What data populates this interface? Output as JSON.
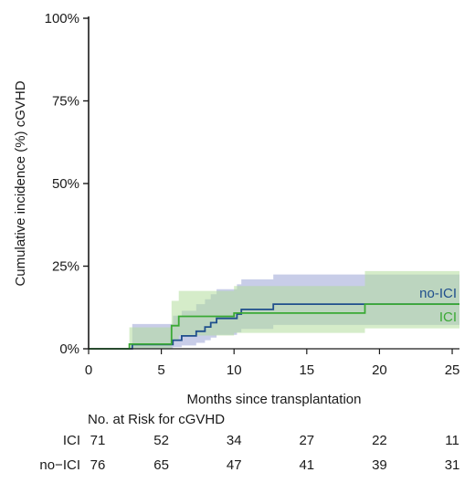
{
  "chart_data": {
    "type": "line",
    "subtype": "cumulative incidence step curves with confidence bands",
    "xlabel": "Months since transplantation",
    "ylabel": "Cumulative incidence (%) cGVHD",
    "xlim": [
      0,
      25.5
    ],
    "ylim": [
      0,
      100
    ],
    "x_ticks": [
      "0",
      "5",
      "10",
      "15",
      "20",
      "25"
    ],
    "y_ticks": [
      "0%",
      "25%",
      "50%",
      "75%",
      "100%"
    ],
    "grid": false,
    "legend": "inline labels at right end of curves",
    "series": [
      {
        "name": "no-ICI",
        "color": "#1f4e8c",
        "band_color": "#9aa4d6",
        "x": [
          0,
          3,
          5.8,
          6.4,
          7.4,
          8.0,
          8.4,
          8.8,
          9.1,
          10.2,
          10.5,
          11.0,
          12.7,
          25.5
        ],
        "y": [
          0,
          1.3,
          2.6,
          3.9,
          5.3,
          6.6,
          7.9,
          9.2,
          9.2,
          10.5,
          11.9,
          11.9,
          13.5,
          13.5
        ],
        "lower": [
          0,
          0,
          0.5,
          1.0,
          1.8,
          2.6,
          3.4,
          4.2,
          4.2,
          5.0,
          6.0,
          6.0,
          7.2,
          7.2
        ],
        "upper": [
          0,
          7.5,
          10.0,
          11.5,
          13.5,
          15.0,
          16.5,
          18.0,
          18.0,
          19.5,
          21.0,
          21.0,
          22.5,
          22.5
        ]
      },
      {
        "name": "ICI",
        "color": "#3aa935",
        "band_color": "#b2dc9c",
        "x": [
          0,
          2.8,
          5.7,
          6.2,
          8.6,
          10.0,
          19.0,
          25.5
        ],
        "y": [
          0,
          1.4,
          7.0,
          9.8,
          9.8,
          10.8,
          13.5,
          13.5
        ],
        "lower": [
          0,
          0,
          2.5,
          4.0,
          4.0,
          4.8,
          6.2,
          6.2
        ],
        "upper": [
          0,
          6.5,
          14.5,
          17.5,
          17.5,
          19.0,
          23.5,
          23.5
        ]
      }
    ]
  },
  "risk_table": {
    "title": "No. at Risk for cGVHD",
    "rows": [
      {
        "name": "ICI",
        "values": [
          "71",
          "52",
          "34",
          "27",
          "22",
          "11"
        ]
      },
      {
        "name": "no−ICI",
        "values": [
          "76",
          "65",
          "47",
          "41",
          "39",
          "31"
        ]
      }
    ]
  }
}
